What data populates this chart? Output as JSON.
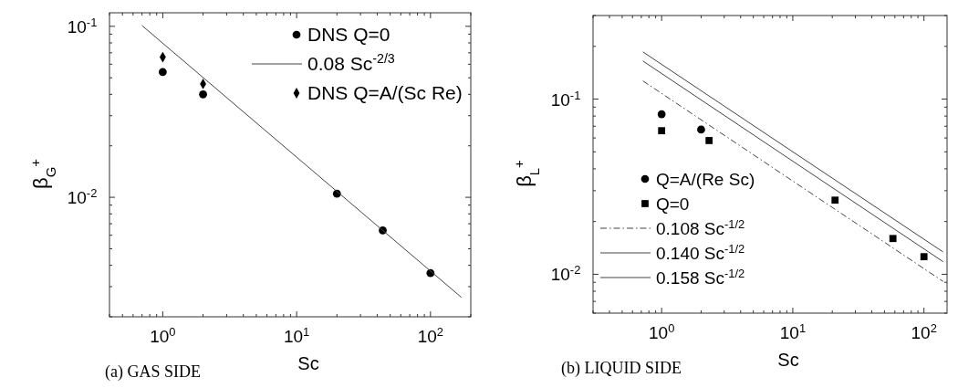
{
  "chart_data": [
    {
      "type": "scatter",
      "xlabel": "Sc",
      "ylabel": "β$_{G}$$^{+}$",
      "log": "xy",
      "grid": false,
      "legend": "top right",
      "xlim": [
        0.4,
        200
      ],
      "ylim": [
        0.002,
        0.12
      ],
      "xticks": [
        {
          "value": 0.4,
          "label": null
        },
        {
          "value": 0.5,
          "label": null
        },
        {
          "value": 0.6,
          "label": null
        },
        {
          "value": 0.7,
          "label": null
        },
        {
          "value": 0.8,
          "label": null
        },
        {
          "value": 0.9,
          "label": null
        },
        {
          "value": 1,
          "label": "10$^{0}$"
        },
        {
          "value": 2,
          "label": null
        },
        {
          "value": 3,
          "label": null
        },
        {
          "value": 4,
          "label": null
        },
        {
          "value": 5,
          "label": null
        },
        {
          "value": 6,
          "label": null
        },
        {
          "value": 7,
          "label": null
        },
        {
          "value": 8,
          "label": null
        },
        {
          "value": 9,
          "label": null
        },
        {
          "value": 10,
          "label": "10$^{1}$"
        },
        {
          "value": 20,
          "label": null
        },
        {
          "value": 30,
          "label": null
        },
        {
          "value": 40,
          "label": null
        },
        {
          "value": 50,
          "label": null
        },
        {
          "value": 60,
          "label": null
        },
        {
          "value": 70,
          "label": null
        },
        {
          "value": 80,
          "label": null
        },
        {
          "value": 90,
          "label": null
        },
        {
          "value": 100,
          "label": "10$^{2}$"
        },
        {
          "value": 200,
          "label": null
        }
      ],
      "yticks": [
        {
          "value": 0.002,
          "label": null
        },
        {
          "value": 0.003,
          "label": null
        },
        {
          "value": 0.004,
          "label": null
        },
        {
          "value": 0.005,
          "label": null
        },
        {
          "value": 0.006,
          "label": null
        },
        {
          "value": 0.007,
          "label": null
        },
        {
          "value": 0.008,
          "label": null
        },
        {
          "value": 0.009,
          "label": null
        },
        {
          "value": 0.01,
          "label": "10$^{-2}$"
        },
        {
          "value": 0.02,
          "label": null
        },
        {
          "value": 0.03,
          "label": null
        },
        {
          "value": 0.04,
          "label": null
        },
        {
          "value": 0.05,
          "label": null
        },
        {
          "value": 0.06,
          "label": null
        },
        {
          "value": 0.07,
          "label": null
        },
        {
          "value": 0.08,
          "label": null
        },
        {
          "value": 0.09,
          "label": null
        },
        {
          "value": 0.1,
          "label": "10$^{-1}$"
        }
      ],
      "annotations": [
        "(a) GAS SIDE"
      ],
      "series": [
        {
          "name": "DNS Q=0",
          "marker": "circle",
          "color": "#000000",
          "x": [
            1,
            2,
            20,
            44,
            100
          ],
          "values": [
            0.054,
            0.04,
            0.0105,
            0.0064,
            0.0036
          ]
        },
        {
          "name": "0.08 Sc$^{-2/3}$",
          "type": "line",
          "marker": "none",
          "line_style": "solid",
          "color": "#444444",
          "x": [
            0.7,
            170
          ],
          "values": [
            0.101,
            0.0026
          ]
        },
        {
          "name": "DNS Q=A/(Sc Re)",
          "marker": "diamond",
          "color": "#000000",
          "x": [
            1,
            2
          ],
          "values": [
            0.066,
            0.046
          ]
        }
      ]
    },
    {
      "type": "scatter",
      "xlabel": "Sc",
      "ylabel": "β$_{L}$$^{+}$",
      "log": "xy",
      "grid": false,
      "legend": "bottom left",
      "xlim": [
        0.3,
        150
      ],
      "ylim": [
        0.006,
        0.3
      ],
      "xticks": [
        {
          "value": 0.3,
          "label": null
        },
        {
          "value": 0.4,
          "label": null
        },
        {
          "value": 0.5,
          "label": null
        },
        {
          "value": 0.6,
          "label": null
        },
        {
          "value": 0.7,
          "label": null
        },
        {
          "value": 0.8,
          "label": null
        },
        {
          "value": 0.9,
          "label": null
        },
        {
          "value": 1,
          "label": "10$^{0}$"
        },
        {
          "value": 2,
          "label": null
        },
        {
          "value": 3,
          "label": null
        },
        {
          "value": 4,
          "label": null
        },
        {
          "value": 5,
          "label": null
        },
        {
          "value": 6,
          "label": null
        },
        {
          "value": 7,
          "label": null
        },
        {
          "value": 8,
          "label": null
        },
        {
          "value": 9,
          "label": null
        },
        {
          "value": 10,
          "label": "10$^{1}$"
        },
        {
          "value": 20,
          "label": null
        },
        {
          "value": 30,
          "label": null
        },
        {
          "value": 40,
          "label": null
        },
        {
          "value": 50,
          "label": null
        },
        {
          "value": 60,
          "label": null
        },
        {
          "value": 70,
          "label": null
        },
        {
          "value": 80,
          "label": null
        },
        {
          "value": 90,
          "label": null
        },
        {
          "value": 100,
          "label": "10$^{2}$"
        }
      ],
      "yticks": [
        {
          "value": 0.006,
          "label": null
        },
        {
          "value": 0.007,
          "label": null
        },
        {
          "value": 0.008,
          "label": null
        },
        {
          "value": 0.009,
          "label": null
        },
        {
          "value": 0.01,
          "label": "10$^{-2}$"
        },
        {
          "value": 0.02,
          "label": null
        },
        {
          "value": 0.03,
          "label": null
        },
        {
          "value": 0.04,
          "label": null
        },
        {
          "value": 0.05,
          "label": null
        },
        {
          "value": 0.06,
          "label": null
        },
        {
          "value": 0.07,
          "label": null
        },
        {
          "value": 0.08,
          "label": null
        },
        {
          "value": 0.09,
          "label": null
        },
        {
          "value": 0.1,
          "label": "10$^{-1}$"
        },
        {
          "value": 0.2,
          "label": null
        },
        {
          "value": 0.3,
          "label": null
        }
      ],
      "annotations": [
        "(b) LIQUID SIDE"
      ],
      "series": [
        {
          "name": "Q=A/(Re Sc)",
          "marker": "circle",
          "color": "#000000",
          "x": [
            1,
            2
          ],
          "values": [
            0.082,
            0.067
          ]
        },
        {
          "name": "Q=0",
          "marker": "square",
          "color": "#000000",
          "x": [
            1,
            2.3,
            21,
            58,
            100
          ],
          "values": [
            0.066,
            0.058,
            0.0265,
            0.016,
            0.0126
          ]
        },
        {
          "name": "0.108 Sc$^{-1/2}$",
          "type": "line",
          "marker": "none",
          "line_style": "dashed",
          "color": "#444444",
          "x": [
            0.72,
            140
          ],
          "values": [
            0.127,
            0.0091
          ]
        },
        {
          "name": "0.140 Sc$^{-1/2}$",
          "type": "line",
          "marker": "none",
          "line_style": "solid",
          "color": "#444444",
          "x": [
            0.72,
            140
          ],
          "values": [
            0.165,
            0.0118
          ]
        },
        {
          "name": "0.158 Sc$^{-1/2}$",
          "type": "line",
          "marker": "none",
          "line_style": "solid",
          "color": "#444444",
          "x": [
            0.72,
            140
          ],
          "values": [
            0.186,
            0.0134
          ]
        }
      ]
    }
  ]
}
